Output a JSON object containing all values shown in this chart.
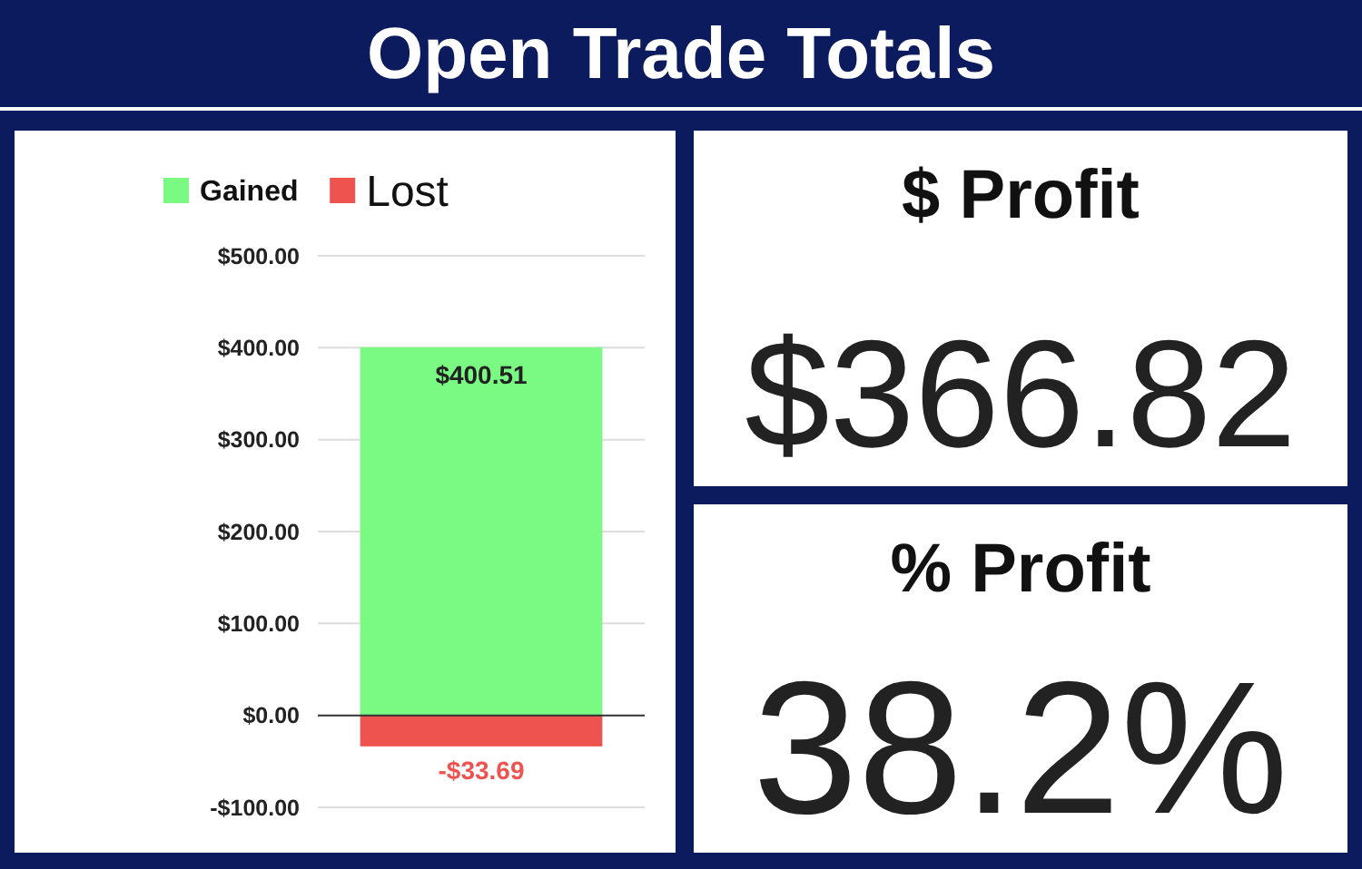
{
  "chart_data": [
    {
      "type": "bar",
      "title": "Open Trade Totals",
      "categories": [
        null
      ],
      "stacked": true,
      "legend": "top",
      "grid": "y",
      "data_labels": false,
      "series": [
        {
          "name": "Gained",
          "color": "#7bfa83",
          "values": [
            400.51
          ],
          "value_labels": [
            "$400.51"
          ]
        },
        {
          "name": "Lost",
          "color": "#ef5350",
          "values": [
            -33.69
          ],
          "value_labels": [
            "-$33.69"
          ]
        }
      ],
      "ylim": [
        -100,
        500
      ],
      "yticks": [
        {
          "value": -100,
          "label": "-$100.00"
        },
        {
          "value": 0,
          "label": "$0.00"
        },
        {
          "value": 100,
          "label": "$100.00"
        },
        {
          "value": 200,
          "label": "$200.00"
        },
        {
          "value": 300,
          "label": "$300.00"
        },
        {
          "value": 400,
          "label": "$400.00"
        },
        {
          "value": 500,
          "label": "$500.00"
        }
      ]
    },
    {
      "type": "other",
      "title": "$ Profit",
      "annotations": [
        "$366.82"
      ]
    },
    {
      "type": "other",
      "title": "% Profit",
      "annotations": [
        "38.2%"
      ]
    }
  ]
}
